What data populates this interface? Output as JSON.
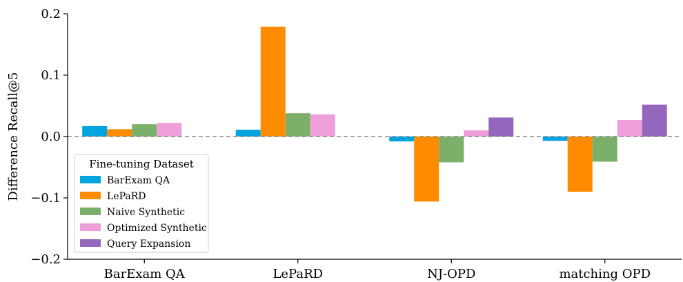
{
  "chart_data": {
    "type": "bar",
    "title": "",
    "xlabel": "",
    "ylabel": "Difference Recall@5",
    "ylim": [
      -0.2,
      0.2
    ],
    "yticks": [
      -0.2,
      -0.1,
      0.0,
      0.1,
      0.2
    ],
    "ytick_labels": [
      "−0.2",
      "−0.1",
      "0.0",
      "0.1",
      "0.2"
    ],
    "categories": [
      "BarExam QA",
      "LePaRD",
      "NJ-OPD",
      "matching_OPD"
    ],
    "category_labels": [
      "BarExam QA",
      "LePaRD",
      "NJ-OPD",
      "matching OPD"
    ],
    "series": [
      {
        "name": "BarExam QA",
        "color": "#00A5DF",
        "values": [
          0.017,
          0.011,
          -0.008,
          -0.007
        ]
      },
      {
        "name": "LePaRD",
        "color": "#FF8C00",
        "values": [
          0.012,
          0.179,
          -0.106,
          -0.09
        ]
      },
      {
        "name": "Naive Synthetic",
        "color": "#7CAF6A",
        "values": [
          0.02,
          0.038,
          -0.042,
          -0.041
        ]
      },
      {
        "name": "Optimized Synthetic",
        "color": "#EE9ED8",
        "values": [
          0.022,
          0.036,
          0.01,
          0.027
        ]
      },
      {
        "name": "Query Expansion",
        "color": "#9467BD",
        "values": [
          0.0,
          0.0,
          0.031,
          0.052
        ]
      }
    ],
    "zero_line": "dashed",
    "grid": false,
    "legend": {
      "title": "Fine-tuning Dataset",
      "placement": "lower-left"
    }
  }
}
